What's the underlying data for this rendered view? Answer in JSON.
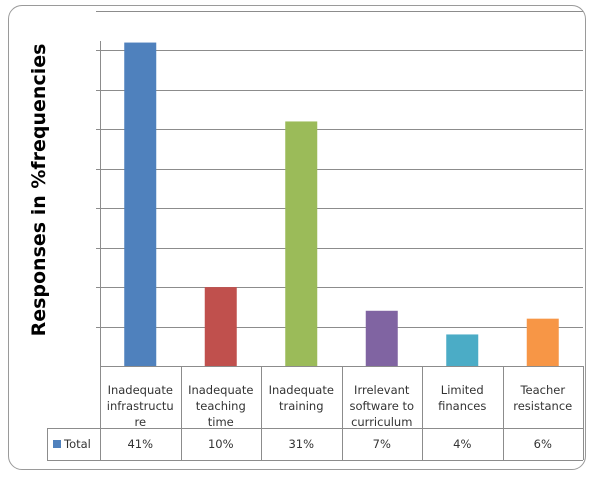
{
  "chart_data": {
    "type": "bar",
    "title": "",
    "ylabel": "Responses in %frequencies",
    "xlabel": "",
    "categories": [
      [
        "Inadequate",
        "infrastructu",
        "re"
      ],
      [
        "Inadequate",
        "teaching",
        "time"
      ],
      [
        "Inadequate",
        "training"
      ],
      [
        "Irrelevant",
        "software to",
        "curriculum"
      ],
      [
        "Limited",
        "finances"
      ],
      [
        "Teacher",
        "resistance"
      ]
    ],
    "series": [
      {
        "name": "Total",
        "values": [
          41,
          10,
          31,
          7,
          4,
          6
        ],
        "labels": [
          "41%",
          "10%",
          "31%",
          "7%",
          "4%",
          "6%"
        ]
      }
    ],
    "colors": [
      "#4f81bd",
      "#c0504d",
      "#9bbb59",
      "#8064a2",
      "#4bacc6",
      "#f79646"
    ],
    "legend_color": "#4f81bd",
    "ylim": [
      0,
      45
    ],
    "grid": true,
    "legend": "data-table"
  }
}
